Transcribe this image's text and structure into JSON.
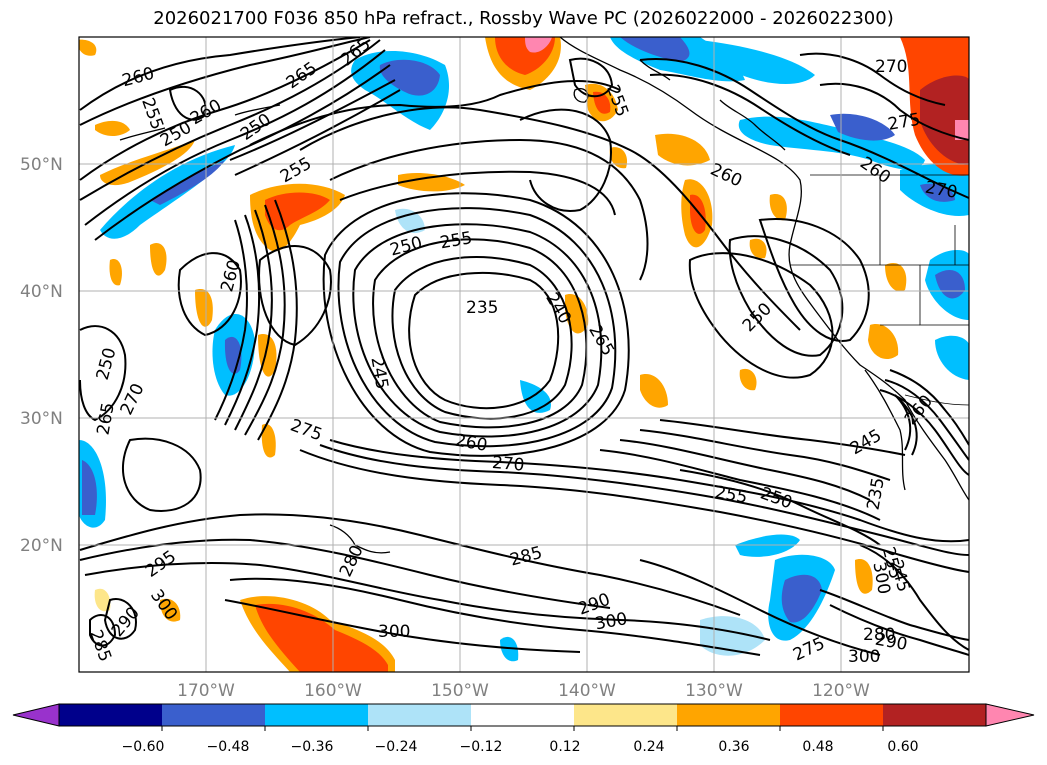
{
  "title": "2026021700 F036 850 hPa refract., Rossby Wave PC (2026022000 - 2026022300)",
  "lat_labels": [
    "50°N",
    "40°N",
    "30°N",
    "20°N"
  ],
  "lon_labels": [
    "170°W",
    "160°W",
    "150°W",
    "140°W",
    "130°W",
    "120°W"
  ],
  "colorbar": {
    "tick_labels": [
      "−0.60",
      "−0.48",
      "−0.36",
      "−0.24",
      "−0.12",
      "0.12",
      "0.24",
      "0.36",
      "0.48",
      "0.60"
    ],
    "colors": [
      "#9932cc",
      "#00008b",
      "#3a5fcd",
      "#00bfff",
      "#aee3f8",
      "#ffffff",
      "#fde68a",
      "#ffa500",
      "#ff4500",
      "#b22222",
      "#ff86b0"
    ]
  },
  "contour_labels": [
    "260",
    "255",
    "260",
    "265",
    "250",
    "265",
    "255",
    "250",
    "270",
    "250",
    "255",
    "260",
    "255",
    "275",
    "250",
    "260",
    "250",
    "270",
    "265",
    "235",
    "245",
    "240",
    "265",
    "260",
    "275",
    "260",
    "270",
    "255",
    "250",
    "245",
    "235",
    "295",
    "290",
    "300",
    "285",
    "280",
    "285",
    "290",
    "300",
    "300",
    "300",
    "275",
    "280",
    "290",
    "300",
    "255",
    "245",
    "270",
    "260"
  ]
}
